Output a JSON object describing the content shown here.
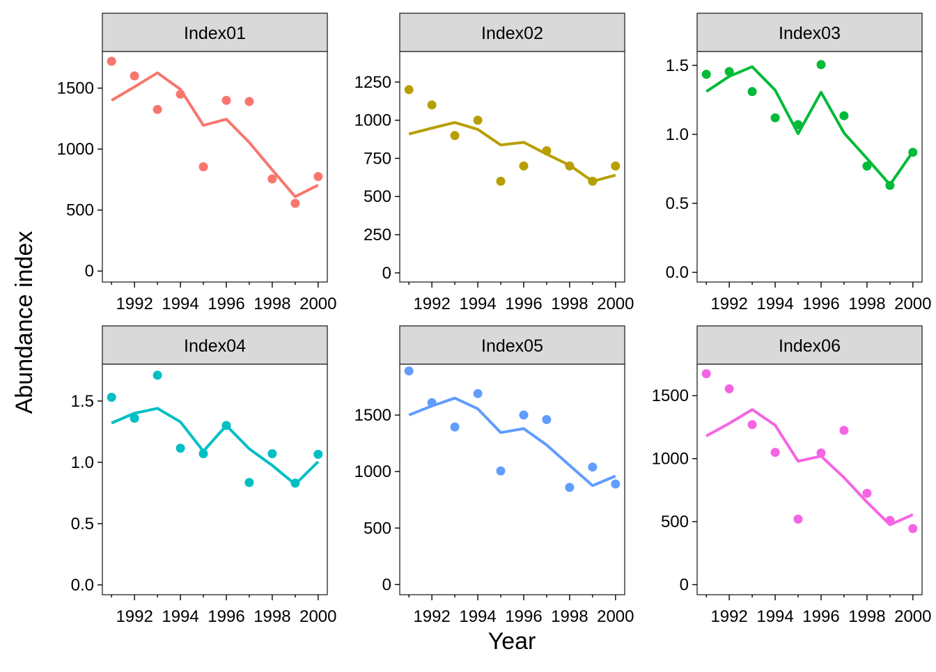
{
  "chart_data": {
    "type": "line",
    "xlabel": "Year",
    "ylabel": "Abundance index",
    "x": [
      1991,
      1992,
      1993,
      1994,
      1995,
      1996,
      1997,
      1998,
      1999,
      2000
    ],
    "x_ticks": [
      1992,
      1994,
      1996,
      1998,
      2000
    ],
    "x_minor_ticks": [
      1991,
      1993,
      1995,
      1997,
      1999
    ],
    "grid": false,
    "legend": "none",
    "panels": [
      {
        "name": "Index01",
        "color": "#F8766D",
        "ylim": [
          -90,
          1800
        ],
        "y_ticks": [
          0,
          500,
          1000,
          1500
        ],
        "points": [
          1720,
          1600,
          1325,
          1450,
          855,
          1400,
          1390,
          755,
          555,
          775
        ],
        "line": [
          1400,
          1510,
          1625,
          1490,
          1195,
          1245,
          1055,
          830,
          610,
          705
        ]
      },
      {
        "name": "Index02",
        "color": "#B79F00",
        "ylim": [
          -60,
          1450
        ],
        "y_ticks": [
          0,
          250,
          500,
          750,
          1000,
          1250
        ],
        "points": [
          1200,
          1100,
          900,
          1000,
          600,
          700,
          800,
          700,
          600,
          700
        ],
        "line": [
          910,
          948,
          985,
          940,
          838,
          855,
          778,
          705,
          600,
          640
        ]
      },
      {
        "name": "Index03",
        "color": "#00BA38",
        "ylim": [
          -0.07,
          1.6
        ],
        "y_ticks": [
          0.0,
          0.5,
          1.0,
          1.5
        ],
        "points": [
          1.435,
          1.455,
          1.31,
          1.12,
          1.07,
          1.505,
          1.135,
          0.77,
          0.63,
          0.87
        ],
        "line": [
          1.31,
          1.42,
          1.49,
          1.32,
          1.005,
          1.305,
          1.01,
          0.825,
          0.635,
          0.875
        ]
      },
      {
        "name": "Index04",
        "color": "#00BFC4",
        "ylim": [
          -0.08,
          1.8
        ],
        "y_ticks": [
          0.0,
          0.5,
          1.0,
          1.5
        ],
        "points": [
          1.53,
          1.36,
          1.71,
          1.115,
          1.07,
          1.3,
          0.835,
          1.07,
          0.83,
          1.065
        ],
        "line": [
          1.32,
          1.4,
          1.44,
          1.33,
          1.09,
          1.3,
          1.11,
          0.975,
          0.82,
          1.005
        ]
      },
      {
        "name": "Index05",
        "color": "#619CFF",
        "ylim": [
          -90,
          1950
        ],
        "y_ticks": [
          0,
          500,
          1000,
          1500
        ],
        "points": [
          1890,
          1610,
          1395,
          1690,
          1005,
          1500,
          1460,
          860,
          1040,
          890
        ],
        "line": [
          1500,
          1580,
          1650,
          1555,
          1345,
          1380,
          1235,
          1055,
          875,
          960
        ]
      },
      {
        "name": "Index06",
        "color": "#F564E3",
        "ylim": [
          -80,
          1750
        ],
        "y_ticks": [
          0,
          500,
          1000,
          1500
        ],
        "points": [
          1675,
          1555,
          1270,
          1050,
          520,
          1045,
          1225,
          725,
          510,
          445
        ],
        "line": [
          1180,
          1280,
          1390,
          1265,
          980,
          1020,
          850,
          655,
          475,
          555
        ]
      }
    ]
  }
}
